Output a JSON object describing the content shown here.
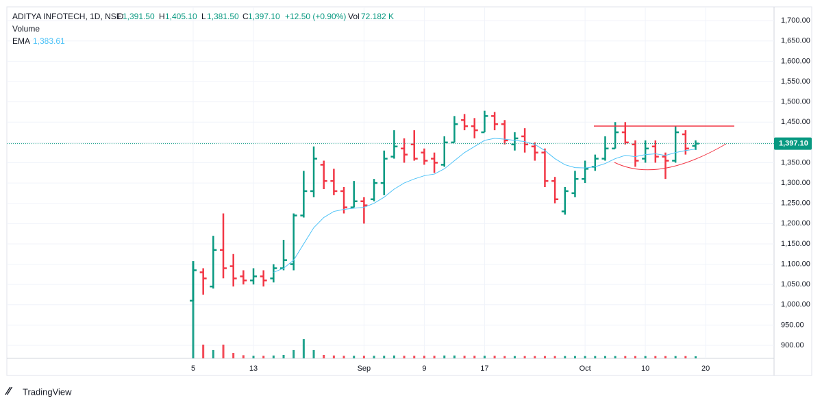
{
  "header": {
    "symbol": "ADITYA INFOTECH, 1D, NSE",
    "o_label": "O",
    "o_value": "1,391.50",
    "h_label": "H",
    "h_value": "1,405.10",
    "l_label": "L",
    "l_value": "1,381.50",
    "c_label": "C",
    "c_value": "1,397.10",
    "change": "+12.50 (+0.90%)",
    "vol_label": "Vol",
    "vol_value": "72.182 K",
    "volume_name": "Volume",
    "ema_name": "EMA",
    "ema_value": "1,383.61"
  },
  "brand": "TradingView",
  "chart_data": {
    "type": "ohlc",
    "categories": [
      "5",
      null,
      null,
      null,
      null,
      null,
      "13",
      null,
      null,
      null,
      null,
      null,
      null,
      null,
      null,
      null,
      null,
      "Sep",
      null,
      null,
      null,
      null,
      null,
      "9",
      null,
      null,
      null,
      null,
      null,
      "17",
      null,
      null,
      null,
      null,
      null,
      null,
      null,
      null,
      null,
      "Oct",
      null,
      null,
      null,
      null,
      null,
      "10",
      null,
      null,
      null,
      null,
      null,
      "20"
    ],
    "open": [
      1010,
      1080,
      1045,
      1135,
      1095,
      1070,
      1060,
      1070,
      1065,
      1090,
      1100,
      1220,
      1280,
      1345,
      1305,
      1280,
      1240,
      1255,
      1260,
      1300,
      1365,
      1385,
      1395,
      1375,
      1360,
      1345,
      1400,
      1455,
      1440,
      1425,
      1465,
      1445,
      1395,
      1415,
      1390,
      1375,
      1305,
      1230,
      1275,
      1310,
      1340,
      1360,
      1385,
      1425,
      1395,
      1360,
      1390,
      1365,
      1355,
      1420,
      1391.5,
      null
    ],
    "high": [
      1105,
      1090,
      1170,
      1225,
      1125,
      1085,
      1090,
      1085,
      1100,
      1160,
      1225,
      1330,
      1390,
      1355,
      1335,
      1290,
      1305,
      1265,
      1310,
      1380,
      1430,
      1410,
      1430,
      1385,
      1375,
      1415,
      1465,
      1470,
      1460,
      1478,
      1475,
      1455,
      1425,
      1435,
      1400,
      1385,
      1315,
      1290,
      1330,
      1355,
      1370,
      1415,
      1450,
      1450,
      1405,
      1405,
      1405,
      1375,
      1440,
      1430,
      1405.1,
      null
    ],
    "low": [
      1010,
      1025,
      1040,
      1065,
      1045,
      1050,
      1050,
      1045,
      1055,
      1085,
      1085,
      1215,
      1265,
      1285,
      1270,
      1225,
      1240,
      1200,
      1255,
      1270,
      1360,
      1350,
      1355,
      1345,
      1325,
      1340,
      1400,
      1430,
      1410,
      1425,
      1430,
      1395,
      1380,
      1375,
      1355,
      1290,
      1250,
      1222,
      1265,
      1300,
      1330,
      1355,
      1385,
      1395,
      1340,
      1350,
      1350,
      1310,
      1350,
      1370,
      1381.5,
      null
    ],
    "close": [
      1085,
      1065,
      1135,
      1090,
      1065,
      1060,
      1070,
      1060,
      1090,
      1110,
      1220,
      1280,
      1360,
      1305,
      1280,
      1240,
      1255,
      1245,
      1300,
      1360,
      1390,
      1370,
      1360,
      1355,
      1350,
      1400,
      1445,
      1440,
      1430,
      1465,
      1445,
      1405,
      1410,
      1395,
      1375,
      1305,
      1260,
      1280,
      1310,
      1335,
      1360,
      1385,
      1425,
      1400,
      1355,
      1385,
      1365,
      1355,
      1425,
      1385,
      1397.1,
      null
    ],
    "ema": [
      null,
      null,
      null,
      null,
      null,
      null,
      null,
      null,
      1080,
      1090,
      1110,
      1150,
      1190,
      1215,
      1230,
      1235,
      1238,
      1240,
      1250,
      1265,
      1285,
      1300,
      1310,
      1318,
      1322,
      1335,
      1355,
      1375,
      1390,
      1405,
      1410,
      1408,
      1405,
      1402,
      1395,
      1380,
      1360,
      1345,
      1338,
      1337,
      1340,
      1348,
      1360,
      1368,
      1365,
      1370,
      1372,
      1368,
      1375,
      1380,
      1383.61,
      null
    ],
    "volume": [
      3400000,
      480000,
      290000,
      480000,
      190000,
      110000,
      90000,
      90000,
      100000,
      120000,
      290000,
      670000,
      290000,
      120000,
      100000,
      90000,
      90000,
      90000,
      90000,
      90000,
      100000,
      90000,
      90000,
      90000,
      90000,
      100000,
      100000,
      90000,
      90000,
      90000,
      90000,
      80000,
      80000,
      80000,
      80000,
      80000,
      80000,
      80000,
      80000,
      80000,
      80000,
      80000,
      80000,
      80000,
      80000,
      80000,
      80000,
      80000,
      80000,
      80000,
      72182,
      null
    ],
    "up_color": "#089981",
    "down_color": "#f23645",
    "ema_color": "#4fc3f7",
    "last_price_label": "1,397.10",
    "ylim": [
      868,
      1734
    ],
    "yticks": [
      {
        "value": 900,
        "label": "900.00"
      },
      {
        "value": 950,
        "label": "950.00"
      },
      {
        "value": 1000,
        "label": "1,000.00"
      },
      {
        "value": 1050,
        "label": "1,050.00"
      },
      {
        "value": 1100,
        "label": "1,100.00"
      },
      {
        "value": 1150,
        "label": "1,150.00"
      },
      {
        "value": 1200,
        "label": "1,200.00"
      },
      {
        "value": 1250,
        "label": "1,250.00"
      },
      {
        "value": 1300,
        "label": "1,300.00"
      },
      {
        "value": 1350,
        "label": "1,350.00"
      },
      {
        "value": 1400,
        "label": "1,400.00"
      },
      {
        "value": 1450,
        "label": "1,450.00"
      },
      {
        "value": 1500,
        "label": "1,500.00"
      },
      {
        "value": 1550,
        "label": "1,550.00"
      },
      {
        "value": 1600,
        "label": "1,600.00"
      },
      {
        "value": 1650,
        "label": "1,650.00"
      },
      {
        "value": 1700,
        "label": "1,700.00"
      }
    ],
    "grid": true
  }
}
